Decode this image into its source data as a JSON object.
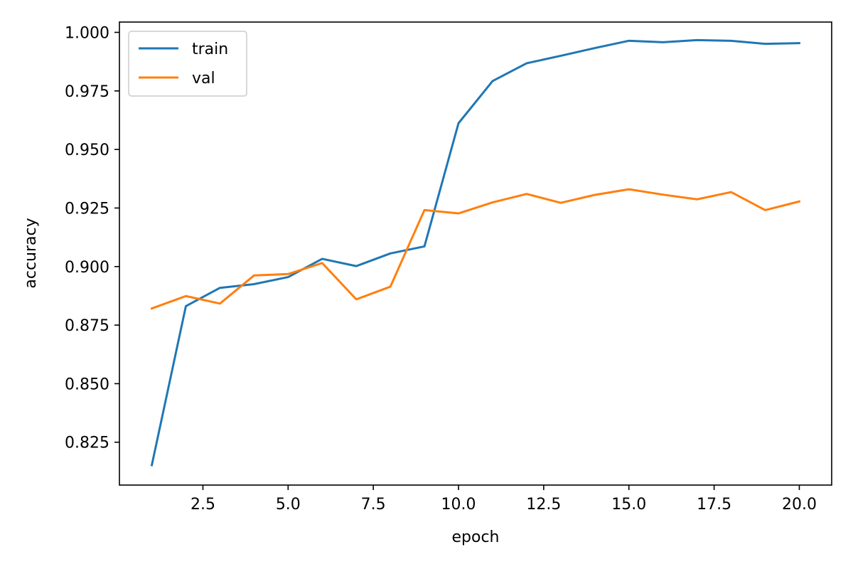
{
  "chart_data": {
    "type": "line",
    "title": "",
    "xlabel": "epoch",
    "ylabel": "accuracy",
    "xlim": [
      0.05,
      20.95
    ],
    "ylim": [
      0.8067,
      1.0044
    ],
    "grid": false,
    "legend_position": "top-left",
    "x": [
      1,
      2,
      3,
      4,
      5,
      6,
      7,
      8,
      9,
      10,
      11,
      12,
      13,
      14,
      15,
      16,
      17,
      18,
      19,
      20
    ],
    "x_ticks": [
      2.5,
      5.0,
      7.5,
      10.0,
      12.5,
      15.0,
      17.5,
      20.0
    ],
    "x_tick_labels": [
      "2.5",
      "5.0",
      "7.5",
      "10.0",
      "12.5",
      "15.0",
      "17.5",
      "20.0"
    ],
    "y_ticks": [
      0.825,
      0.85,
      0.875,
      0.9,
      0.925,
      0.95,
      0.975,
      1.0
    ],
    "y_tick_labels": [
      "0.825",
      "0.850",
      "0.875",
      "0.900",
      "0.925",
      "0.950",
      "0.975",
      "1.000"
    ],
    "series": [
      {
        "name": "train",
        "color": "#1f77b4",
        "values": [
          0.8152,
          0.8831,
          0.8909,
          0.8925,
          0.8955,
          0.9033,
          0.9002,
          0.9056,
          0.9086,
          0.9612,
          0.9792,
          0.9868,
          0.99,
          0.9933,
          0.9964,
          0.9958,
          0.9967,
          0.9964,
          0.9951,
          0.9954
        ]
      },
      {
        "name": "val",
        "color": "#ff7f0e",
        "values": [
          0.8821,
          0.8874,
          0.8842,
          0.8962,
          0.8968,
          0.9015,
          0.886,
          0.8914,
          0.9241,
          0.9227,
          0.9274,
          0.931,
          0.9272,
          0.9306,
          0.933,
          0.9307,
          0.9287,
          0.9318,
          0.9241,
          0.9278
        ]
      }
    ]
  }
}
